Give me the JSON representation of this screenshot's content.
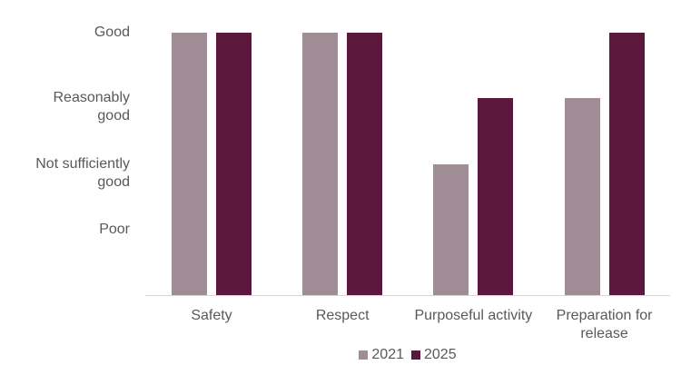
{
  "chart_data": {
    "type": "bar",
    "title": "",
    "categories": [
      "Safety",
      "Respect",
      "Purposeful activity",
      "Preparation for release"
    ],
    "series": [
      {
        "name": "2021",
        "color": "#A08C95",
        "values": [
          4,
          4,
          2,
          3
        ]
      },
      {
        "name": "2025",
        "color": "#5C183C",
        "values": [
          4,
          4,
          3,
          4
        ]
      }
    ],
    "y_axis": {
      "min": 0,
      "max": 4,
      "ticks": [
        {
          "value": 4,
          "lines": [
            "Good"
          ]
        },
        {
          "value": 3,
          "lines": [
            "Reasonably",
            "good"
          ]
        },
        {
          "value": 2,
          "lines": [
            "Not sufficiently",
            "good"
          ]
        },
        {
          "value": 1,
          "lines": [
            "Poor"
          ]
        }
      ]
    },
    "legend": {
      "position": "bottom",
      "entries": [
        "2021",
        "2025"
      ]
    },
    "grid": false,
    "colors": {
      "axis_line": "#D6D6D6",
      "text": "#595959",
      "background": "#FFFFFF"
    }
  }
}
